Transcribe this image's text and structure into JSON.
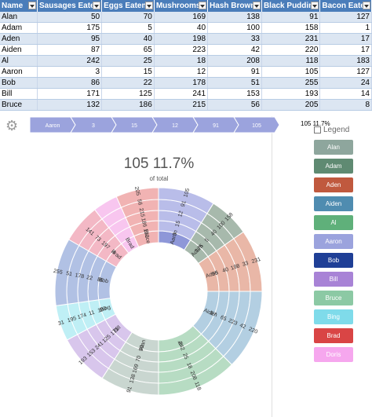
{
  "sheet": {
    "columns": [
      "Name",
      "Sausages Eaten",
      "Eggs Eaten",
      "Mushrooms",
      "Hash Browns",
      "Black Pudding",
      "Bacon Eaten"
    ],
    "rows": [
      [
        "Alan",
        "50",
        "70",
        "169",
        "138",
        "91",
        "127"
      ],
      [
        "Adam",
        "175",
        "5",
        "40",
        "100",
        "158",
        "1"
      ],
      [
        "Aden",
        "95",
        "40",
        "198",
        "33",
        "231",
        "17"
      ],
      [
        "Aiden",
        "87",
        "65",
        "223",
        "42",
        "220",
        "17"
      ],
      [
        "Al",
        "242",
        "25",
        "18",
        "208",
        "118",
        "183"
      ],
      [
        "Aaron",
        "3",
        "15",
        "12",
        "91",
        "105",
        "127"
      ],
      [
        "Bob",
        "86",
        "22",
        "178",
        "51",
        "255",
        "24"
      ],
      [
        "Bill",
        "171",
        "125",
        "241",
        "153",
        "193",
        "14"
      ],
      [
        "Bruce",
        "132",
        "186",
        "215",
        "56",
        "205",
        "8"
      ]
    ]
  },
  "toolbar": {
    "settings_icon": "gear-icon"
  },
  "breadcrumb": [
    "Aaron",
    "3",
    "15",
    "12",
    "91",
    "105"
  ],
  "center": {
    "value": "105 11.7%",
    "subtitle": "of total"
  },
  "legend": {
    "top_value": "105 11.7%",
    "checkbox_label": "Legend",
    "items": [
      {
        "label": "Alan",
        "color": "#8ea69d"
      },
      {
        "label": "Adam",
        "color": "#5f8a72"
      },
      {
        "label": "Aden",
        "color": "#c0593e"
      },
      {
        "label": "Aiden",
        "color": "#4f8cb0"
      },
      {
        "label": "Al",
        "color": "#5fb07a"
      },
      {
        "label": "Aaron",
        "color": "#9ba3dd"
      },
      {
        "label": "Bob",
        "color": "#1f3f96"
      },
      {
        "label": "Bill",
        "color": "#a883d6"
      },
      {
        "label": "Bruce",
        "color": "#8cc9a4"
      },
      {
        "label": "Bing",
        "color": "#7fdbea"
      },
      {
        "label": "Brad",
        "color": "#d94545"
      },
      {
        "label": "Doris",
        "color": "#f6a7ee"
      }
    ]
  },
  "chart_data": {
    "type": "sunburst",
    "total_center_label": "105 11.7%",
    "segments": [
      {
        "name": "Aaron",
        "color": "#b9bde9",
        "values": [
          "3",
          "15",
          "12",
          "91",
          "105"
        ]
      },
      {
        "name": "Adam",
        "color": "#a7b9ac",
        "values": [
          "175",
          "5",
          "40",
          "100",
          "158"
        ]
      },
      {
        "name": "Aden",
        "color": "#e9b7a7",
        "values": [
          "95",
          "40",
          "198",
          "33",
          "231"
        ]
      },
      {
        "name": "Aiden",
        "color": "#b3cfe2",
        "values": [
          "87",
          "65",
          "223",
          "42",
          "220"
        ]
      },
      {
        "name": "Al",
        "color": "#b7dcc3",
        "values": [
          "242",
          "25",
          "18",
          "208",
          "118"
        ]
      },
      {
        "name": "Alan",
        "color": "#c9d6d0",
        "values": [
          "50",
          "70",
          "169",
          "138",
          "91"
        ]
      },
      {
        "name": "Bill",
        "color": "#d8c6ec",
        "values": [
          "171",
          "125",
          "241",
          "153",
          "193"
        ]
      },
      {
        "name": "Bing",
        "color": "#bfeff5",
        "values": [
          "180",
          "11",
          "174",
          "195",
          "31"
        ]
      },
      {
        "name": "Bob",
        "color": "#b1c1e4",
        "values": [
          "86",
          "22",
          "178",
          "51",
          "255"
        ]
      },
      {
        "name": "Brad",
        "color": "#f3b8c5",
        "values": [
          "4",
          "197",
          "73",
          "141",
          ""
        ]
      },
      {
        "name": "Brad",
        "color": "#f8c6ef",
        "values": [
          "",
          "",
          "",
          "",
          ""
        ]
      },
      {
        "name": "Bruce",
        "color": "#f1b3b3",
        "values": [
          "132",
          "186",
          "215",
          "56",
          "205"
        ]
      }
    ]
  }
}
